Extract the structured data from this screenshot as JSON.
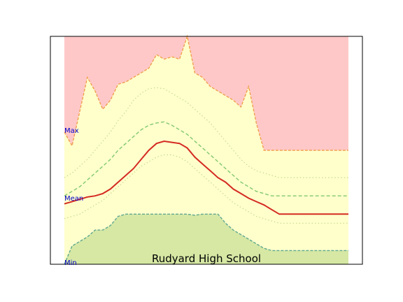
{
  "chart_data": {
    "type": "area",
    "title": "Rudyard High School",
    "annotations": {
      "max_label": "Max",
      "mean_label": "Mean",
      "min_label": "Min"
    },
    "xlim": [
      0,
      37
    ],
    "ylim": [
      0,
      100
    ],
    "grid": false,
    "colors": {
      "above_max": "#ffc8c8",
      "band": "#ffffcc",
      "below_min": "#d6e8a4",
      "max_line": "#f0a050",
      "mean_line": "#d42a22",
      "std_line": "#80c870",
      "extreme_line": "#c8d890",
      "min_line": "#60a890",
      "label": "#0000cc"
    },
    "x": [
      0,
      1,
      2,
      3,
      4,
      5,
      6,
      7,
      8,
      9,
      10,
      11,
      12,
      13,
      14,
      15,
      16,
      17,
      18,
      19,
      20,
      21,
      22,
      23,
      24,
      25,
      26,
      27,
      28,
      29,
      30,
      31,
      32,
      33,
      34,
      35,
      36,
      37
    ],
    "series": [
      {
        "key": "max",
        "values": [
          58,
          52,
          67,
          82,
          76,
          68,
          72,
          79,
          80,
          82,
          84,
          86,
          92,
          90,
          91,
          90,
          100,
          84,
          82,
          78,
          76,
          74,
          72,
          69,
          78,
          62,
          50,
          50,
          50,
          50,
          50,
          50,
          50,
          50,
          50,
          50,
          50,
          50
        ]
      },
      {
        "key": "mean_plus_std",
        "values": [
          30,
          32,
          34,
          37,
          40,
          43,
          46,
          50,
          53,
          56,
          59,
          61,
          62,
          62.5,
          61,
          59,
          57,
          54,
          51,
          48,
          45,
          42,
          39,
          36,
          34,
          32,
          31,
          30,
          30,
          30,
          30,
          30,
          30,
          30,
          30,
          30,
          30,
          30
        ]
      },
      {
        "key": "mean",
        "values": [
          26.5,
          27.5,
          28.5,
          29.5,
          30,
          31,
          33,
          36,
          39,
          42,
          46,
          50,
          53,
          54,
          53.5,
          53,
          51,
          47,
          44,
          41,
          38,
          36,
          33,
          31,
          29,
          27.5,
          26,
          24,
          22,
          22,
          22,
          22,
          22,
          22,
          22,
          22,
          22,
          22
        ]
      },
      {
        "key": "mean_minus_std",
        "values": [
          20,
          21,
          22,
          24,
          26,
          28,
          31,
          34,
          37,
          40,
          43,
          45,
          47,
          48,
          48,
          47,
          45,
          42,
          39,
          36,
          33,
          30,
          27,
          25,
          23,
          21,
          20,
          19,
          18,
          18,
          18,
          18,
          18,
          18,
          18,
          18,
          18,
          18
        ]
      },
      {
        "key": "extreme_upper",
        "values": [
          38,
          40,
          43,
          46,
          50,
          54,
          58,
          63,
          67,
          72,
          75,
          77,
          77.5,
          77,
          75,
          73,
          71,
          68,
          65,
          62,
          58,
          54,
          50,
          46,
          43,
          41,
          40,
          39,
          38,
          38,
          38,
          38,
          38,
          38,
          38,
          38,
          38,
          38
        ]
      },
      {
        "key": "min",
        "values": [
          0,
          8,
          10,
          12,
          15,
          15,
          17,
          21,
          22,
          22,
          22,
          22,
          22,
          22,
          22,
          22,
          22,
          21.5,
          22,
          22,
          22,
          18,
          15,
          13,
          11,
          9,
          7,
          6,
          6,
          6,
          6,
          6,
          6,
          6,
          6,
          6,
          6,
          6
        ]
      }
    ]
  }
}
